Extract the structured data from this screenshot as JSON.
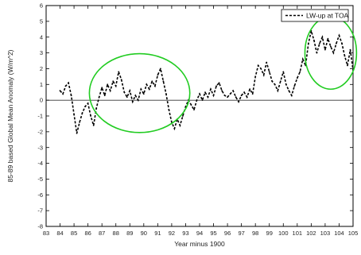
{
  "chart_data": {
    "type": "line",
    "xlabel": "Year minus 1900",
    "ylabel": "85-89 based Global Mean Anomaly  (W/m^2)",
    "xlim": [
      83,
      105
    ],
    "ylim": [
      -8,
      6
    ],
    "x_ticks": [
      83,
      84,
      85,
      86,
      87,
      88,
      89,
      90,
      91,
      92,
      93,
      94,
      95,
      96,
      97,
      98,
      99,
      100,
      101,
      102,
      103,
      104,
      105
    ],
    "x_tick_labels": [
      "83",
      "84",
      "85",
      "86",
      "87",
      "88",
      "89",
      "90",
      "91",
      "92",
      "93",
      "94",
      "95",
      "96",
      "97",
      "98",
      "99",
      "100",
      "101",
      "102",
      "103",
      "104",
      "105"
    ],
    "y_ticks": [
      -8,
      -7,
      -6,
      -5,
      -4,
      -3,
      -2,
      -1,
      0,
      1,
      2,
      3,
      4,
      5,
      6
    ],
    "y_tick_labels": [
      "-8",
      "-7",
      "-6",
      "-5",
      "-4",
      "-3",
      "-2",
      "-1",
      "0",
      "1",
      "2",
      "3",
      "4",
      "5",
      "6"
    ],
    "grid": false,
    "legend_position": "top-right",
    "zero_line": true,
    "series": [
      {
        "name": "LW-up at TOA",
        "line_style": "dashed",
        "color": "#000000",
        "x": [
          84.0,
          84.2,
          84.4,
          84.6,
          84.8,
          85.0,
          85.2,
          85.4,
          85.6,
          85.8,
          86.0,
          86.2,
          86.4,
          86.6,
          86.8,
          87.0,
          87.2,
          87.4,
          87.6,
          87.8,
          88.0,
          88.2,
          88.4,
          88.6,
          88.8,
          89.0,
          89.2,
          89.4,
          89.6,
          89.8,
          90.0,
          90.2,
          90.4,
          90.6,
          90.8,
          91.0,
          91.2,
          91.4,
          91.6,
          91.8,
          92.0,
          92.2,
          92.4,
          92.6,
          92.8,
          93.0,
          93.2,
          93.4,
          93.6,
          93.8,
          94.0,
          94.2,
          94.4,
          94.6,
          94.8,
          95.0,
          95.2,
          95.4,
          95.6,
          95.8,
          96.0,
          96.2,
          96.4,
          96.6,
          96.8,
          97.0,
          97.2,
          97.4,
          97.6,
          97.8,
          98.0,
          98.2,
          98.4,
          98.6,
          98.8,
          99.0,
          99.2,
          99.4,
          99.6,
          99.8,
          100.0,
          100.2,
          100.4,
          100.6,
          100.8,
          101.0,
          101.2,
          101.4,
          101.6,
          101.8,
          102.0,
          102.2,
          102.4,
          102.6,
          102.8,
          103.0,
          103.2,
          103.4,
          103.6,
          103.8,
          104.0,
          104.2,
          104.4,
          104.6,
          104.8,
          105.0
        ],
        "values": [
          0.6,
          0.4,
          0.9,
          1.1,
          0.3,
          -0.9,
          -2.1,
          -1.4,
          -0.8,
          -0.4,
          -0.2,
          -1.0,
          -1.6,
          -0.5,
          0.2,
          0.8,
          0.3,
          1.0,
          0.6,
          1.2,
          0.9,
          1.8,
          1.3,
          0.5,
          0.2,
          0.6,
          -0.1,
          0.3,
          0.0,
          0.7,
          0.4,
          1.0,
          0.7,
          1.2,
          0.9,
          1.6,
          2.0,
          1.2,
          0.4,
          -0.6,
          -1.4,
          -1.8,
          -1.2,
          -1.6,
          -1.0,
          -0.4,
          0.0,
          -0.3,
          -0.6,
          0.0,
          0.4,
          0.0,
          0.5,
          0.2,
          0.7,
          0.3,
          0.9,
          1.1,
          0.6,
          0.3,
          0.2,
          0.4,
          0.6,
          0.2,
          -0.1,
          0.3,
          0.5,
          0.2,
          0.7,
          0.4,
          1.5,
          2.2,
          2.0,
          1.6,
          2.4,
          1.8,
          1.2,
          1.0,
          0.6,
          1.2,
          1.8,
          1.0,
          0.6,
          0.3,
          0.9,
          1.4,
          1.8,
          2.6,
          2.2,
          3.6,
          4.4,
          3.8,
          3.0,
          3.6,
          4.0,
          3.2,
          3.9,
          3.4,
          3.0,
          3.6,
          4.1,
          3.6,
          2.8,
          2.2,
          3.2,
          1.9
        ]
      }
    ],
    "annotations": [
      {
        "type": "ellipse",
        "color": "#22cc22",
        "cx": 89.7,
        "cy": 0.45,
        "rx": 3.6,
        "ry": 2.5
      },
      {
        "type": "ellipse",
        "color": "#22cc22",
        "cx": 103.4,
        "cy": 3.0,
        "rx": 1.85,
        "ry": 2.3
      }
    ]
  }
}
